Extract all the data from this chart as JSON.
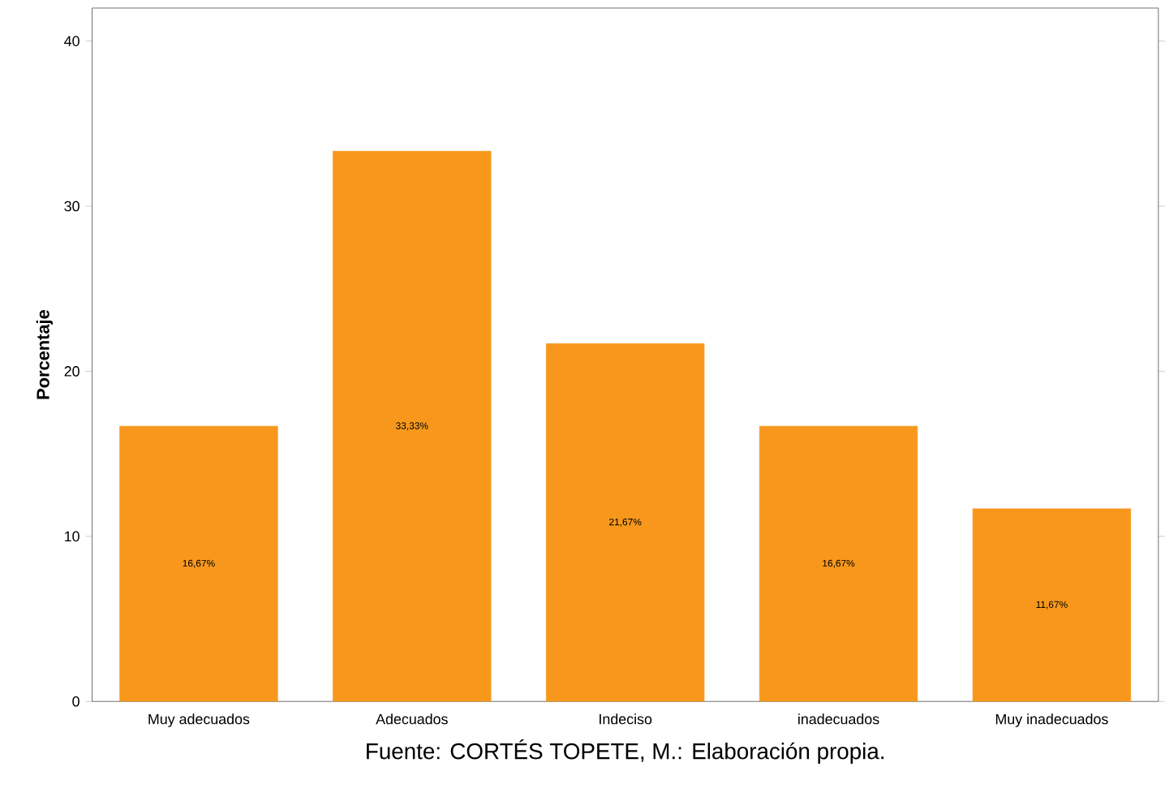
{
  "chart_data": {
    "type": "bar",
    "ylabel": "Porcentaje",
    "categories": [
      "Muy adecuados",
      "Adecuados",
      "Indeciso",
      "inadecuados",
      "Muy inadecuados"
    ],
    "values": [
      16.67,
      33.33,
      21.67,
      16.67,
      11.67
    ],
    "value_labels": [
      "16,67%",
      "33,33%",
      "21,67%",
      "16,67%",
      "11,67%"
    ],
    "color": "#f7981d",
    "ylim": [
      0,
      42
    ],
    "yticks": [
      0,
      10,
      20,
      30,
      40
    ],
    "annotations": [
      "Fuente: CORTÉS TOPETE, M.: Elaboración propia."
    ]
  }
}
